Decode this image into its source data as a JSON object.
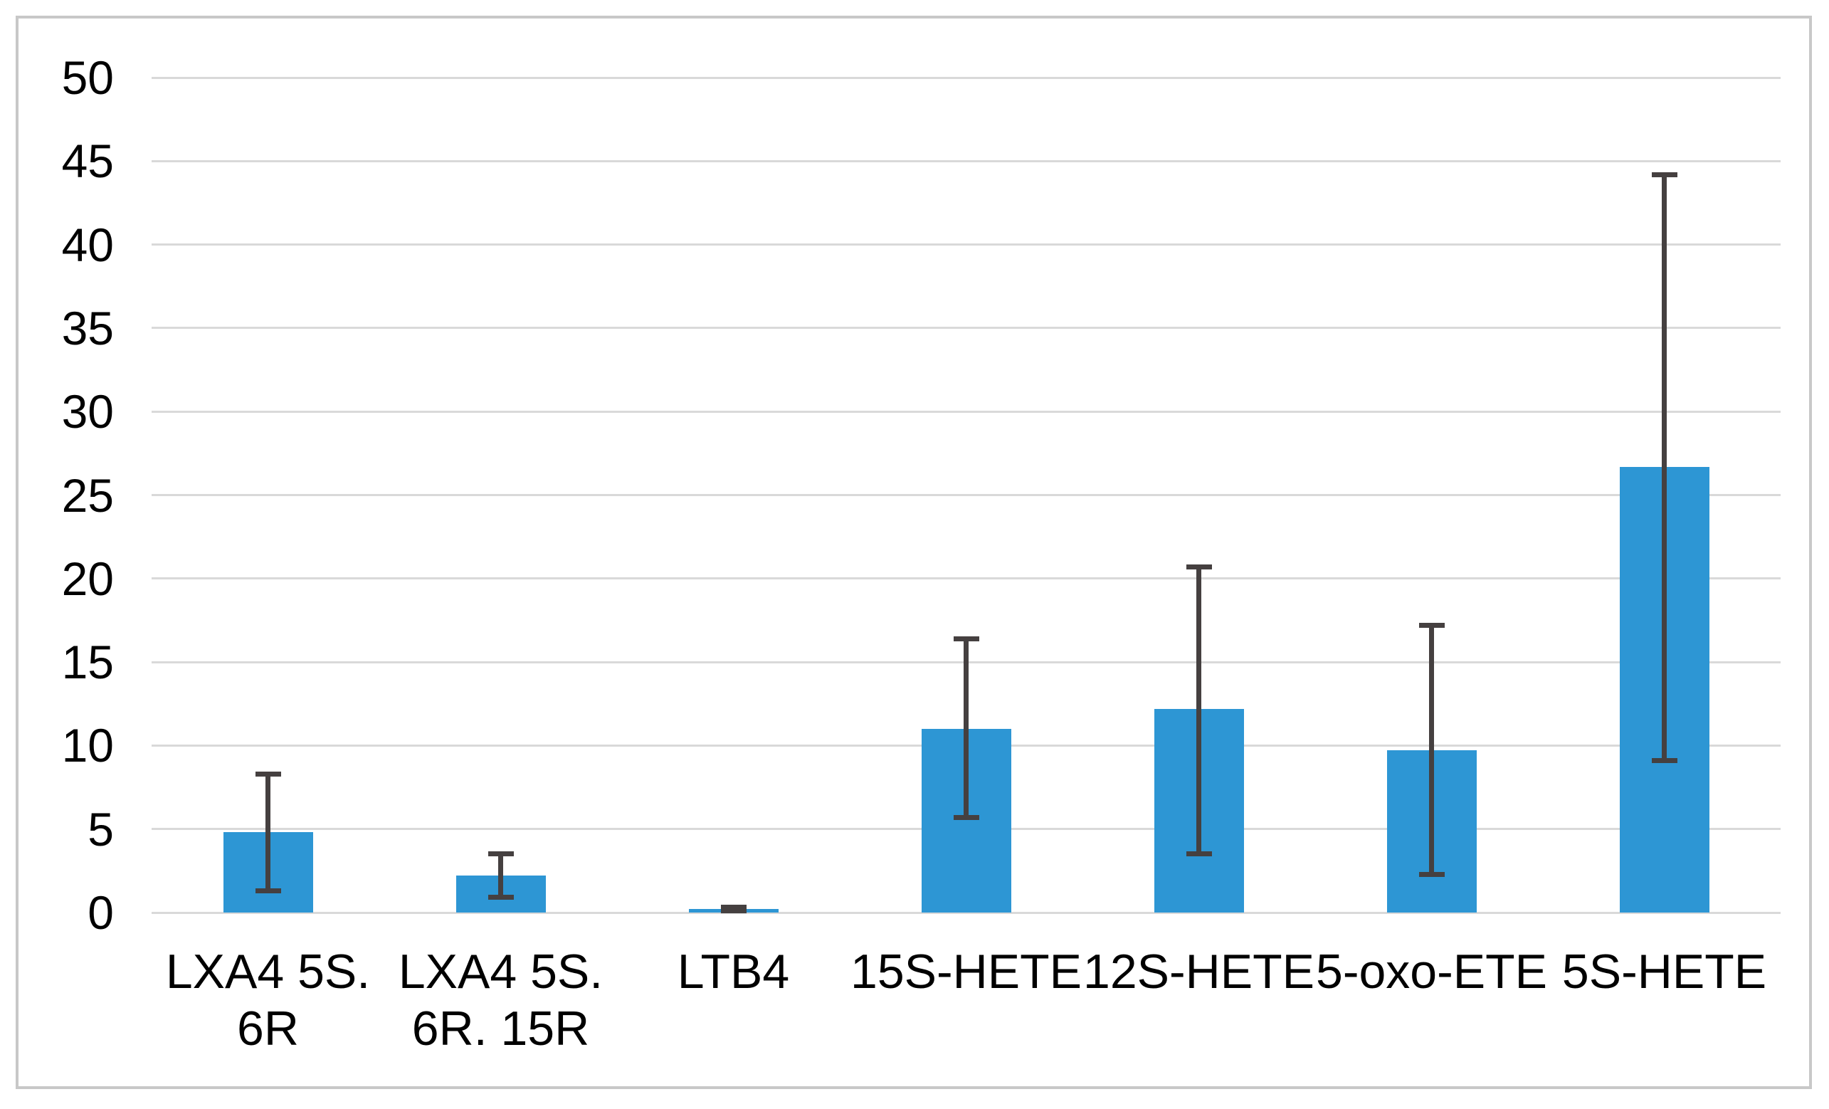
{
  "chart_data": {
    "type": "bar",
    "title": "",
    "xlabel": "",
    "ylabel": "",
    "categories": [
      "LXA4 5S. 6R",
      "LXA4 5S. 6R. 15R",
      "LTB4",
      "15S-HETE",
      "12S-HETE",
      "5-oxo-ETE",
      "5S-HETE"
    ],
    "category_label_lines": [
      [
        "LXA4 5S.",
        "6R"
      ],
      [
        "LXA4 5S.",
        "6R. 15R"
      ],
      [
        "LTB4"
      ],
      [
        "15S-HETE"
      ],
      [
        "12S-HETE"
      ],
      [
        "5-oxo-ETE"
      ],
      [
        "5S-HETE"
      ]
    ],
    "values": [
      4.8,
      2.2,
      0.2,
      11.0,
      12.2,
      9.7,
      26.7
    ],
    "error_low": [
      1.3,
      0.9,
      0.1,
      5.7,
      3.5,
      2.3,
      9.1
    ],
    "error_high": [
      8.3,
      3.5,
      0.3,
      16.4,
      20.7,
      17.2,
      44.2
    ],
    "ylim": [
      0,
      50
    ],
    "ytick_interval": 5,
    "ytick_labels": [
      "0",
      "5",
      "10",
      "15",
      "20",
      "25",
      "30",
      "35",
      "40",
      "45",
      "50"
    ],
    "grid": "horizontal",
    "legend": "none",
    "colors": {
      "bar": "#2D96D4",
      "error_bar": "#454040",
      "gridline": "#D9D9D9",
      "frame_border": "#C8C8C8",
      "text": "#000000",
      "background": "#FFFFFF"
    }
  }
}
